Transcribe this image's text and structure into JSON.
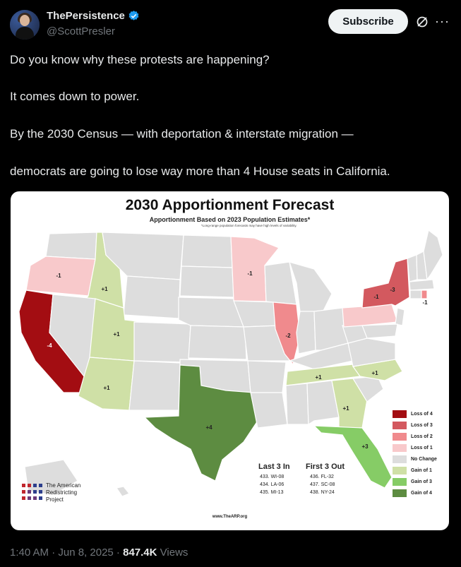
{
  "author": {
    "name": "ThePersistence",
    "handle": "@ScottPresler",
    "avatar": "avatar-photo",
    "verified_icon": "verified-badge-icon"
  },
  "header": {
    "subscribe_label": "Subscribe",
    "grok_icon": "grok-icon",
    "more_icon": "more-options-icon"
  },
  "tweet": {
    "lines": [
      "Do you know why these protests are happening?",
      "It comes down to power.",
      "By the 2030 Census — with deportation & interstate migration —",
      "democrats are going to lose way more than 4 House seats in California."
    ]
  },
  "map": {
    "title": "2030 Apportionment Forecast",
    "subtitle": "Apportionment Based on 2023 Population Estimates*",
    "note": "*Long-range population forecasts may have high levels of variability.",
    "state_labels": {
      "or": "-1",
      "id": "+1",
      "ca": "-4",
      "ut": "+1",
      "az": "+1",
      "tx": "+4",
      "mn": "-1",
      "il": "-2",
      "ny": "-3",
      "pa": "-1",
      "ri": "-1",
      "tn": "+1",
      "nc": "+1",
      "ga": "+1",
      "fl": "+3"
    },
    "legend": [
      {
        "label": "Loss of 4",
        "color": "#a30d12"
      },
      {
        "label": "Loss of 3",
        "color": "#d3595f"
      },
      {
        "label": "Loss of 2",
        "color": "#f08a8d"
      },
      {
        "label": "Loss of 1",
        "color": "#f8c9cb"
      },
      {
        "label": "No Change",
        "color": "#dddddd"
      },
      {
        "label": "Gain of 1",
        "color": "#cfe0a6"
      },
      {
        "label": "Gain of 3",
        "color": "#86cc66"
      },
      {
        "label": "Gain of 4",
        "color": "#5d8c41"
      }
    ],
    "last3": {
      "heading": "Last 3 In",
      "items": [
        "433. WI-08",
        "434. LA-06",
        "435. MI-13"
      ]
    },
    "first3": {
      "heading": "First 3 Out",
      "items": [
        "436. FL-32",
        "437. SC-08",
        "438. NY-24"
      ]
    },
    "org": "The American\nRedistricting\nProject",
    "url": "www.TheARP.org"
  },
  "meta": {
    "time": "1:40 AM · Jun 8, 2025 ·",
    "views_count": "847.4K",
    "views_label": "Views"
  }
}
